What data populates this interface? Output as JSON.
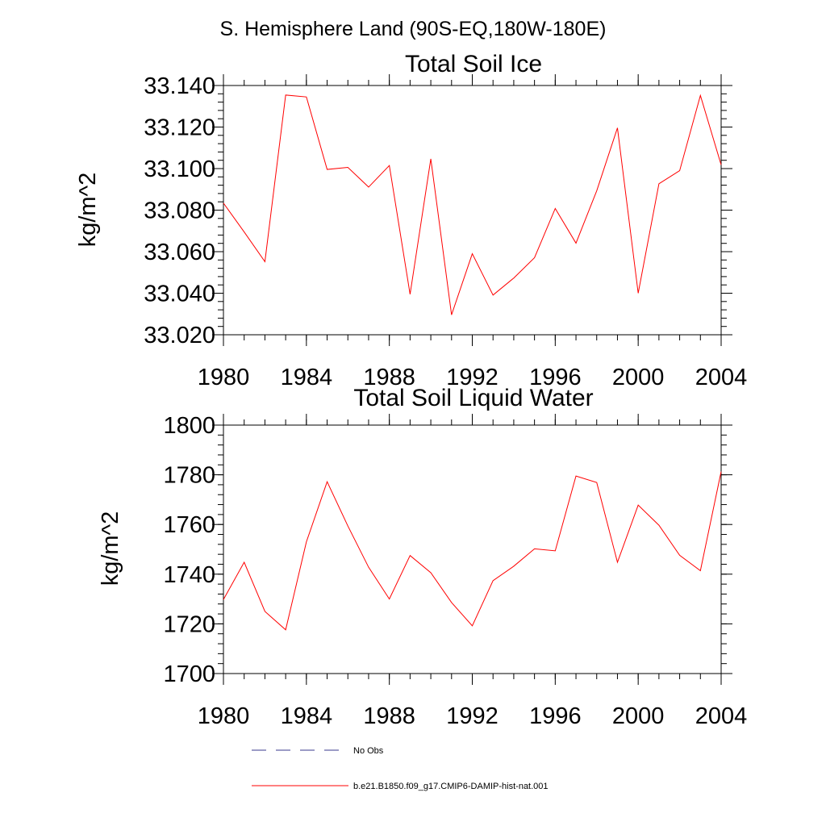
{
  "figure": {
    "suptitle": "S. Hemisphere Land (90S-EQ,180W-180E)"
  },
  "chart_data": [
    {
      "type": "line",
      "title": "Total Soil Ice",
      "xlabel": "",
      "ylabel": "kg/m^2",
      "xlim": [
        1980,
        2004
      ],
      "ylim": [
        33.02,
        33.14
      ],
      "xticks": [
        1980,
        1984,
        1988,
        1992,
        1996,
        2000,
        2004
      ],
      "xtick_labels": [
        "1980",
        "1984",
        "1988",
        "1992",
        "1996",
        "2000",
        "2004"
      ],
      "yticks": [
        33.02,
        33.04,
        33.06,
        33.08,
        33.1,
        33.12,
        33.14
      ],
      "ytick_labels": [
        "33.020",
        "33.040",
        "33.060",
        "33.080",
        "33.100",
        "33.120",
        "33.140"
      ],
      "y_minor_step": 0.004,
      "x_minor_step": 1,
      "grid": false,
      "series": [
        {
          "name": "b.e21.B1850.f09_g17.CMIP6-DAMIP-hist-nat.001",
          "color": "#ff0000",
          "x": [
            1980,
            1981,
            1982,
            1983,
            1984,
            1985,
            1986,
            1987,
            1988,
            1989,
            1990,
            1991,
            1992,
            1993,
            1994,
            1995,
            1996,
            1997,
            1998,
            1999,
            2000,
            2001,
            2002,
            2003,
            2004
          ],
          "y": [
            33.0834,
            33.0695,
            33.0552,
            33.1354,
            33.1345,
            33.0996,
            33.1006,
            33.0911,
            33.1015,
            33.0395,
            33.1047,
            33.0296,
            33.059,
            33.0391,
            33.0473,
            33.0571,
            33.0808,
            33.0641,
            33.0893,
            33.1196,
            33.04,
            33.0927,
            33.099,
            33.1352,
            33.1018
          ]
        }
      ]
    },
    {
      "type": "line",
      "title": "Total Soil Liquid Water",
      "xlabel": "",
      "ylabel": "kg/m^2",
      "xlim": [
        1980,
        2004
      ],
      "ylim": [
        1700,
        1800
      ],
      "xticks": [
        1980,
        1984,
        1988,
        1992,
        1996,
        2000,
        2004
      ],
      "xtick_labels": [
        "1980",
        "1984",
        "1988",
        "1992",
        "1996",
        "2000",
        "2004"
      ],
      "yticks": [
        1700,
        1720,
        1740,
        1760,
        1780,
        1800
      ],
      "ytick_labels": [
        "1700",
        "1720",
        "1740",
        "1760",
        "1780",
        "1800"
      ],
      "y_minor_step": 4,
      "x_minor_step": 1,
      "grid": false,
      "series": [
        {
          "name": "b.e21.B1850.f09_g17.CMIP6-DAMIP-hist-nat.001",
          "color": "#ff0000",
          "x": [
            1980,
            1981,
            1982,
            1983,
            1984,
            1985,
            1986,
            1987,
            1988,
            1989,
            1990,
            1991,
            1992,
            1993,
            1994,
            1995,
            1996,
            1997,
            1998,
            1999,
            2000,
            2001,
            2002,
            2003,
            2004
          ],
          "y": [
            1729.8,
            1744.8,
            1725.0,
            1717.6,
            1753.0,
            1777.2,
            1759.4,
            1742.8,
            1730.0,
            1747.5,
            1740.6,
            1728.6,
            1719.2,
            1737.4,
            1743.2,
            1750.2,
            1749.4,
            1779.5,
            1776.9,
            1744.8,
            1767.8,
            1759.7,
            1747.6,
            1741.4,
            1781.3
          ]
        }
      ]
    }
  ],
  "legend": {
    "placement": "bottom-center",
    "items": [
      {
        "label": "No Obs",
        "color": "#3a3a8c",
        "style": "dashed"
      },
      {
        "label": "b.e21.B1850.f09_g17.CMIP6-DAMIP-hist-nat.001",
        "color": "#ff0000",
        "style": "solid"
      }
    ]
  }
}
